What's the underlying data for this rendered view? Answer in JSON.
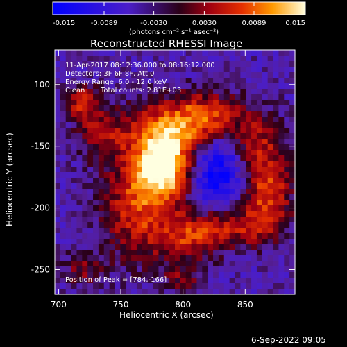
{
  "colorbar": {
    "ticks": [
      "-0.015",
      "-0.0089",
      "-0.0030",
      "0.0030",
      "0.0089",
      "0.015"
    ],
    "unit_label": "(photons cm⁻² s⁻¹ asec⁻²)",
    "range": [
      -0.015,
      0.015
    ]
  },
  "chart_data": {
    "type": "heatmap",
    "title": "Reconstructed RHESSI Image",
    "xlabel": "Heliocentric X (arcsec)",
    "ylabel": "Heliocentric Y (arcsec)",
    "xlim": [
      697,
      890
    ],
    "ylim": [
      -270,
      -72
    ],
    "x_ticks": [
      "700",
      "750",
      "800",
      "850"
    ],
    "y_ticks": [
      "-100",
      "-150",
      "-200",
      "-250"
    ],
    "annotations": {
      "time_range": "11-Apr-2017 08:12:36.000 to 08:16:12.000",
      "detectors": "Detectors: 3F 6F 8F, Att 0",
      "energy_range": "Energy Range: 6.0 - 12.0 keV",
      "method": "Clean",
      "total_counts": "Total counts: 2.81E+03",
      "peak_position": "Position of Peak = [784,-166]"
    },
    "peak": [
      784,
      -166
    ]
  },
  "footer": {
    "timestamp": "6-Sep-2022 09:05"
  }
}
